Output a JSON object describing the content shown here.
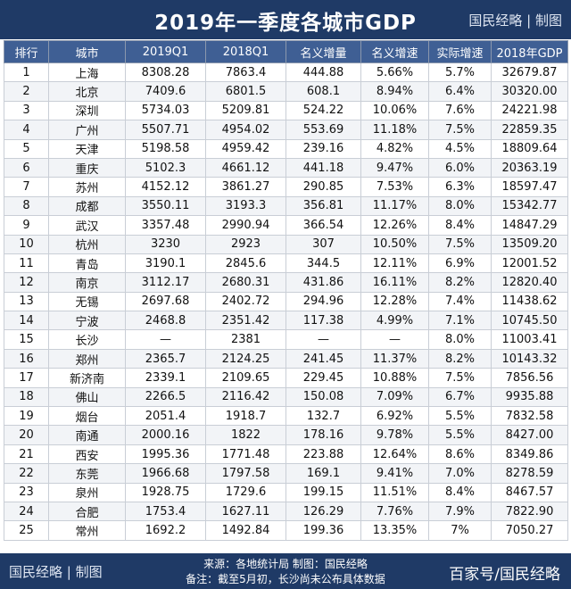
{
  "header": {
    "title": "2019年一季度各城市GDP",
    "brand": "国民经略 | 制图"
  },
  "table": {
    "columns": [
      "排行",
      "城市",
      "2019Q1",
      "2018Q1",
      "名义增量",
      "名义增速",
      "实际增速",
      "2018年GDP"
    ],
    "rows": [
      [
        "1",
        "上海",
        "8308.28",
        "7863.4",
        "444.88",
        "5.66%",
        "5.7%",
        "32679.87"
      ],
      [
        "2",
        "北京",
        "7409.6",
        "6801.5",
        "608.1",
        "8.94%",
        "6.4%",
        "30320.00"
      ],
      [
        "3",
        "深圳",
        "5734.03",
        "5209.81",
        "524.22",
        "10.06%",
        "7.6%",
        "24221.98"
      ],
      [
        "4",
        "广州",
        "5507.71",
        "4954.02",
        "553.69",
        "11.18%",
        "7.5%",
        "22859.35"
      ],
      [
        "5",
        "天津",
        "5198.58",
        "4959.42",
        "239.16",
        "4.82%",
        "4.5%",
        "18809.64"
      ],
      [
        "6",
        "重庆",
        "5102.3",
        "4661.12",
        "441.18",
        "9.47%",
        "6.0%",
        "20363.19"
      ],
      [
        "7",
        "苏州",
        "4152.12",
        "3861.27",
        "290.85",
        "7.53%",
        "6.3%",
        "18597.47"
      ],
      [
        "8",
        "成都",
        "3550.11",
        "3193.3",
        "356.81",
        "11.17%",
        "8.0%",
        "15342.77"
      ],
      [
        "9",
        "武汉",
        "3357.48",
        "2990.94",
        "366.54",
        "12.26%",
        "8.4%",
        "14847.29"
      ],
      [
        "10",
        "杭州",
        "3230",
        "2923",
        "307",
        "10.50%",
        "7.5%",
        "13509.20"
      ],
      [
        "11",
        "青岛",
        "3190.1",
        "2845.6",
        "344.5",
        "12.11%",
        "6.9%",
        "12001.52"
      ],
      [
        "12",
        "南京",
        "3112.17",
        "2680.31",
        "431.86",
        "16.11%",
        "8.2%",
        "12820.40"
      ],
      [
        "13",
        "无锡",
        "2697.68",
        "2402.72",
        "294.96",
        "12.28%",
        "7.4%",
        "11438.62"
      ],
      [
        "14",
        "宁波",
        "2468.8",
        "2351.42",
        "117.38",
        "4.99%",
        "7.1%",
        "10745.50"
      ],
      [
        "15",
        "长沙",
        "—",
        "2381",
        "—",
        "—",
        "8.0%",
        "11003.41"
      ],
      [
        "16",
        "郑州",
        "2365.7",
        "2124.25",
        "241.45",
        "11.37%",
        "8.2%",
        "10143.32"
      ],
      [
        "17",
        "新济南",
        "2339.1",
        "2109.65",
        "229.45",
        "10.88%",
        "7.5%",
        "7856.56"
      ],
      [
        "18",
        "佛山",
        "2266.5",
        "2116.42",
        "150.08",
        "7.09%",
        "6.7%",
        "9935.88"
      ],
      [
        "19",
        "烟台",
        "2051.4",
        "1918.7",
        "132.7",
        "6.92%",
        "5.5%",
        "7832.58"
      ],
      [
        "20",
        "南通",
        "2000.16",
        "1822",
        "178.16",
        "9.78%",
        "5.5%",
        "8427.00"
      ],
      [
        "21",
        "西安",
        "1995.36",
        "1771.48",
        "223.88",
        "12.64%",
        "8.6%",
        "8349.86"
      ],
      [
        "22",
        "东莞",
        "1966.68",
        "1797.58",
        "169.1",
        "9.41%",
        "7.0%",
        "8278.59"
      ],
      [
        "23",
        "泉州",
        "1928.75",
        "1729.6",
        "199.15",
        "11.51%",
        "8.4%",
        "8467.57"
      ],
      [
        "24",
        "合肥",
        "1753.4",
        "1627.11",
        "126.29",
        "7.76%",
        "7.9%",
        "7822.90"
      ],
      [
        "25",
        "常州",
        "1692.2",
        "1492.84",
        "199.36",
        "13.35%",
        "7%",
        "7050.27"
      ]
    ]
  },
  "footer": {
    "brand": "国民经略 | 制图",
    "source": "来源：各地统计局 制图：国民经略",
    "note": "备注：截至5月初，长沙尚未公布具体数据",
    "right": "百家号/国民经略"
  }
}
